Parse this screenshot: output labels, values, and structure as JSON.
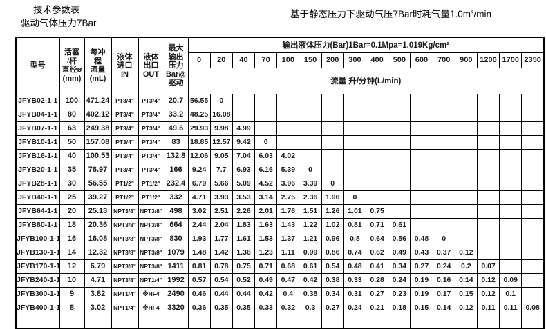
{
  "page": {
    "title_line1": "技术参数表",
    "title_line2": "驱动气体压力7Bar",
    "title_right": "基于静态压力下驱动气压7Bar时耗气量1.0m³/min"
  },
  "table": {
    "headers": {
      "model": "型号",
      "piston_diameter": "活塞\n/杆\n直径ø\n(mm)",
      "stroke_volume": "每冲\n程\n流量\n(mL)",
      "liquid_inlet": "液体\n进口\nIN",
      "liquid_outlet": "液体\n出口\nOUT",
      "max_output": "最大\n输出\n压力\nBar@\n驱动",
      "output_pressure_span": "输出液体压力(Bar)1Bar=0.1Mpa=1.019Kg/cm²",
      "flow_unit": "流量 升/分钟(L/min)"
    },
    "pressure_columns": [
      "0",
      "20",
      "40",
      "70",
      "100",
      "150",
      "200",
      "300",
      "400",
      "500",
      "600",
      "700",
      "900",
      "1200",
      "1700",
      "2350"
    ],
    "rows": [
      {
        "model": "JFYB02-1-1",
        "diameter": "100",
        "stroke_ml": "471.24",
        "inlet": "PT3/4\"",
        "outlet": "PT3/4\"",
        "max_bar": "20.7",
        "flows": [
          "56.55",
          "0"
        ]
      },
      {
        "model": "JFYB04-1-1",
        "diameter": "80",
        "stroke_ml": "402.12",
        "inlet": "PT3/4\"",
        "outlet": "PT3/4\"",
        "max_bar": "33.2",
        "flows": [
          "48.25",
          "16.08"
        ]
      },
      {
        "model": "JFYB07-1-1",
        "diameter": "63",
        "stroke_ml": "249.38",
        "inlet": "PT3/4\"",
        "outlet": "PT3/4\"",
        "max_bar": "49.6",
        "flows": [
          "29.93",
          "9.98",
          "4.99"
        ]
      },
      {
        "model": "JFYB10-1-1",
        "diameter": "50",
        "stroke_ml": "157.08",
        "inlet": "PT3/4\"",
        "outlet": "PT3/4\"",
        "max_bar": "83",
        "flows": [
          "18.85",
          "12.57",
          "9.42",
          "0"
        ]
      },
      {
        "model": "JFYB16-1-1",
        "diameter": "40",
        "stroke_ml": "100.53",
        "inlet": "PT3/4\"",
        "outlet": "PT3/4\"",
        "max_bar": "132.8",
        "flows": [
          "12.06",
          "9.05",
          "7.04",
          "6.03",
          "4.02"
        ]
      },
      {
        "model": "JFYB20-1-1",
        "diameter": "35",
        "stroke_ml": "76.97",
        "inlet": "PT3/4\"",
        "outlet": "PT3/4\"",
        "max_bar": "166",
        "flows": [
          "9.24",
          "7.7",
          "6.93",
          "6.16",
          "5.39",
          "0"
        ]
      },
      {
        "model": "JFYB28-1-1",
        "diameter": "30",
        "stroke_ml": "56.55",
        "inlet": "PT1/2\"",
        "outlet": "PT1/2\"",
        "max_bar": "232.4",
        "flows": [
          "6.79",
          "5.66",
          "5.09",
          "4.52",
          "3.96",
          "3.39",
          "0"
        ]
      },
      {
        "model": "JFYB40-1-1",
        "diameter": "25",
        "stroke_ml": "39.27",
        "inlet": "PT1/2\"",
        "outlet": "PT1/2\"",
        "max_bar": "332",
        "flows": [
          "4.71",
          "3.93",
          "3.53",
          "3.14",
          "2.75",
          "2.36",
          "1.96",
          "0"
        ]
      },
      {
        "model": "JFYB64-1-1",
        "diameter": "20",
        "stroke_ml": "25.13",
        "inlet": "NPT3/8\"",
        "outlet": "NPT3/8\"",
        "max_bar": "498",
        "flows": [
          "3.02",
          "2.51",
          "2.26",
          "2.01",
          "1.76",
          "1.51",
          "1.26",
          "1.01",
          "0.75"
        ]
      },
      {
        "model": "JFYB80-1-1",
        "diameter": "18",
        "stroke_ml": "20.36",
        "inlet": "NPT3/8\"",
        "outlet": "NPT3/8\"",
        "max_bar": "664",
        "flows": [
          "2.44",
          "2.04",
          "1.83",
          "1.63",
          "1.43",
          "1.22",
          "1.02",
          "0.81",
          "0.71",
          "0.61"
        ]
      },
      {
        "model": "JFYB100-1-1",
        "diameter": "16",
        "stroke_ml": "16.08",
        "inlet": "NPT3/8\"",
        "outlet": "NPT3/8\"",
        "max_bar": "830",
        "flows": [
          "1.93",
          "1.77",
          "1.61",
          "1.53",
          "1.37",
          "1.21",
          "0.96",
          "0.8",
          "0.64",
          "0.56",
          "0.48",
          "0"
        ]
      },
      {
        "model": "JFYB130-1-1",
        "diameter": "14",
        "stroke_ml": "12.32",
        "inlet": "NPT3/8\"",
        "outlet": "NPT3/8\"",
        "max_bar": "1079",
        "flows": [
          "1.48",
          "1.42",
          "1.36",
          "1.23",
          "1.11",
          "0.99",
          "0.86",
          "0.74",
          "0.62",
          "0.49",
          "0.43",
          "0.37",
          "0.12"
        ]
      },
      {
        "model": "JFYB170-1-1",
        "diameter": "12",
        "stroke_ml": "6.79",
        "inlet": "NPT3/8\"",
        "outlet": "NPT3/8\"",
        "max_bar": "1411",
        "flows": [
          "0.81",
          "0.78",
          "0.75",
          "0.71",
          "0.68",
          "0.61",
          "0.54",
          "0.48",
          "0.41",
          "0.34",
          "0.27",
          "0.24",
          "0.2",
          "0.07"
        ]
      },
      {
        "model": "JFYB240-1-1",
        "diameter": "10",
        "stroke_ml": "4.71",
        "inlet": "NPT3/8\"",
        "outlet": "NPT1/4\"",
        "max_bar": "1992",
        "flows": [
          "0.57",
          "0.54",
          "0.52",
          "0.49",
          "0.47",
          "0.42",
          "0.38",
          "0.33",
          "0.28",
          "0.24",
          "0.19",
          "0.16",
          "0.14",
          "0.12",
          "0.09"
        ]
      },
      {
        "model": "JFYB300-1-1",
        "diameter": "9",
        "stroke_ml": "3.82",
        "inlet": "NPT1/4\"",
        "outlet": "※HF4",
        "max_bar": "2490",
        "flows": [
          "0.46",
          "0.44",
          "0.44",
          "0.42",
          "0.4",
          "0.38",
          "0.34",
          "0.31",
          "0.27",
          "0.23",
          "0.19",
          "0.17",
          "0.15",
          "0.12",
          "0.1"
        ]
      },
      {
        "model": "JFYB400-1-1",
        "diameter": "8",
        "stroke_ml": "3.02",
        "inlet": "NPT1/4\"",
        "outlet": "※HF4",
        "max_bar": "3320",
        "flows": [
          "0.36",
          "0.35",
          "0.35",
          "0.33",
          "0.32",
          "0.3",
          "0.27",
          "0.24",
          "0.21",
          "0.18",
          "0.15",
          "0.14",
          "0.12",
          "0.11",
          "0.11",
          "0.08"
        ]
      }
    ]
  }
}
